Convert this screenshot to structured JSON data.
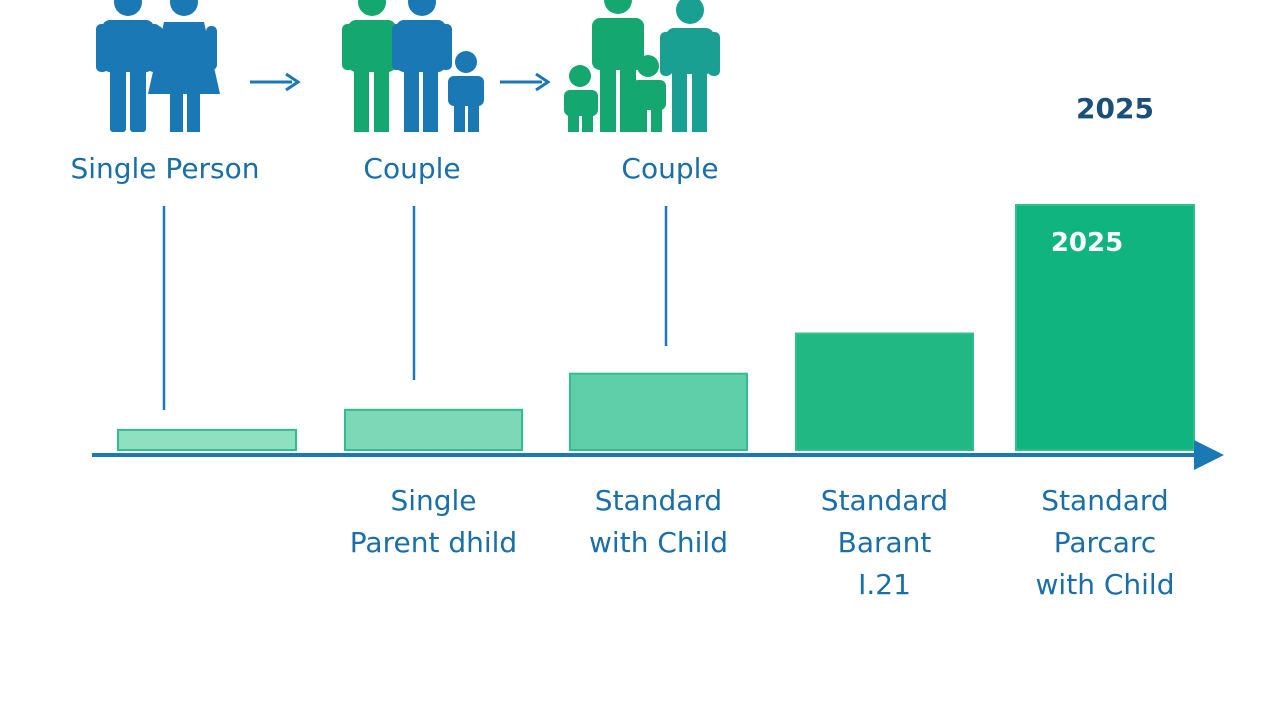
{
  "colors": {
    "blue": "#1a78b4",
    "green": "#14a870",
    "axis": "#1a78b4",
    "label_blue": "#1a6fa8",
    "bar_fill_1": "#8fe0c0",
    "bar_fill_2": "#7dd8b8",
    "bar_fill_3": "#5fcfaa",
    "bar_fill_4": "#22b884",
    "bar_fill_5": "#0fb47e"
  },
  "icons": [
    {
      "name": "single-person-figures-icon",
      "caption": "Single Person"
    },
    {
      "name": "couple-with-child-figures-icon",
      "caption": "Couple"
    },
    {
      "name": "family-figures-icon",
      "caption": "Couple"
    }
  ],
  "year_top": "2025",
  "chart_data": {
    "type": "bar",
    "categories": [
      "",
      "Single\nParent  dhild",
      "Standard\nwith Child",
      "Standard\nBarant\nI.21",
      "Standard\nParcarc\nwith Child"
    ],
    "values": [
      1,
      2,
      3.8,
      5.8,
      12.2
    ],
    "bar_labels": [
      "",
      "",
      "",
      "",
      "2025"
    ],
    "ylim": [
      0,
      13
    ]
  }
}
